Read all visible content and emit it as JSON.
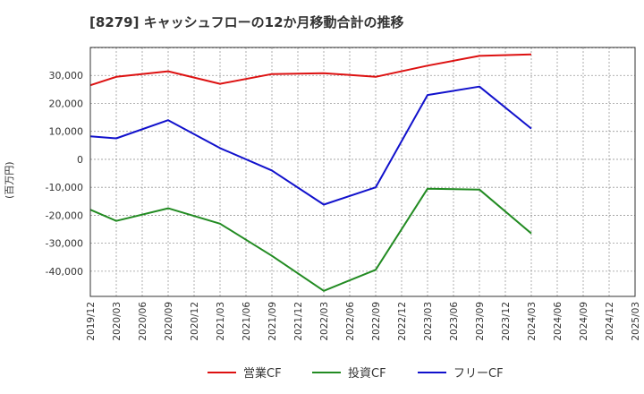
{
  "chart_data": {
    "type": "line",
    "title": "[8279]  キャッシュフローの12か月移動合計の推移",
    "ylabel": "(百万円)",
    "xlabel": "",
    "ylim": [
      -49000,
      40000
    ],
    "yticks": [
      30000,
      20000,
      10000,
      0,
      -10000,
      -20000,
      -30000,
      -40000
    ],
    "ytick_labels": [
      "30,000",
      "20,000",
      "10,000",
      "0",
      "-10,000",
      "-20,000",
      "-30,000",
      "-40,000"
    ],
    "categories": [
      "2019/12",
      "2020/03",
      "2020/06",
      "2020/09",
      "2020/12",
      "2021/03",
      "2021/06",
      "2021/09",
      "2021/12",
      "2022/03",
      "2022/06",
      "2022/09",
      "2022/12",
      "2023/03",
      "2023/06",
      "2023/09",
      "2023/12",
      "2024/03",
      "2024/06",
      "2024/09",
      "2024/12",
      "2025/03"
    ],
    "series": [
      {
        "name": "営業CF",
        "color": "#dd1111",
        "values": [
          26500,
          29500,
          null,
          31500,
          null,
          27000,
          null,
          30500,
          null,
          30800,
          null,
          29500,
          null,
          33500,
          null,
          37000,
          null,
          37500,
          null,
          null,
          null,
          null
        ]
      },
      {
        "name": "投資CF",
        "color": "#228b22",
        "values": [
          -18000,
          -22000,
          null,
          -17500,
          null,
          -23000,
          null,
          -34500,
          null,
          -47000,
          null,
          -39500,
          null,
          -10500,
          null,
          -10800,
          null,
          -26500,
          null,
          null,
          null,
          null
        ]
      },
      {
        "name": "フリーCF",
        "color": "#1111cc",
        "values": [
          8200,
          7500,
          null,
          14000,
          null,
          4000,
          null,
          -4000,
          null,
          -16200,
          null,
          -10000,
          null,
          23000,
          null,
          26000,
          null,
          11000,
          null,
          null,
          null,
          null
        ]
      }
    ],
    "legend_position": "bottom-center",
    "grid": true
  }
}
